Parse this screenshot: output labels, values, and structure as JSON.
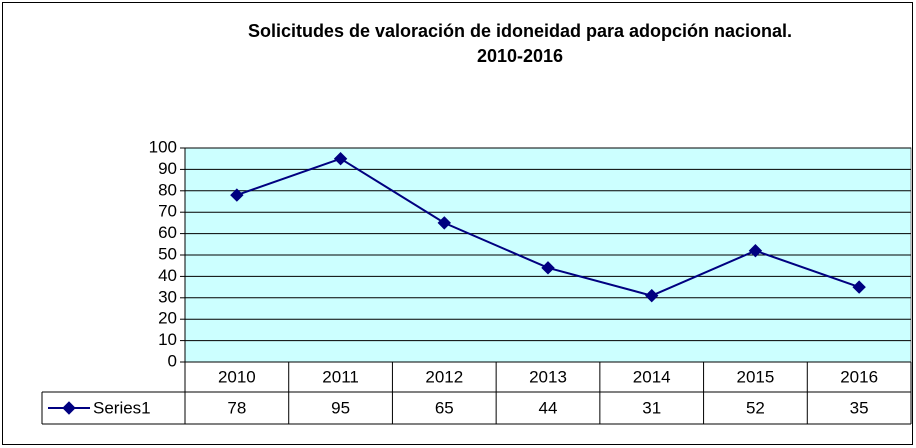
{
  "chart_data": {
    "type": "line",
    "title": [
      "Solicitudes de valoración de idoneidad para adopción nacional.",
      "2010-2016"
    ],
    "categories": [
      "2010",
      "2011",
      "2012",
      "2013",
      "2014",
      "2015",
      "2016"
    ],
    "series": [
      {
        "name": "Series1",
        "color": "#000080",
        "values": [
          78,
          95,
          65,
          44,
          31,
          52,
          35
        ]
      }
    ],
    "ylim": [
      0,
      100
    ],
    "yticks": [
      0,
      10,
      20,
      30,
      40,
      50,
      60,
      70,
      80,
      90,
      100
    ],
    "grid": true,
    "plot_background": "#ccffff"
  }
}
